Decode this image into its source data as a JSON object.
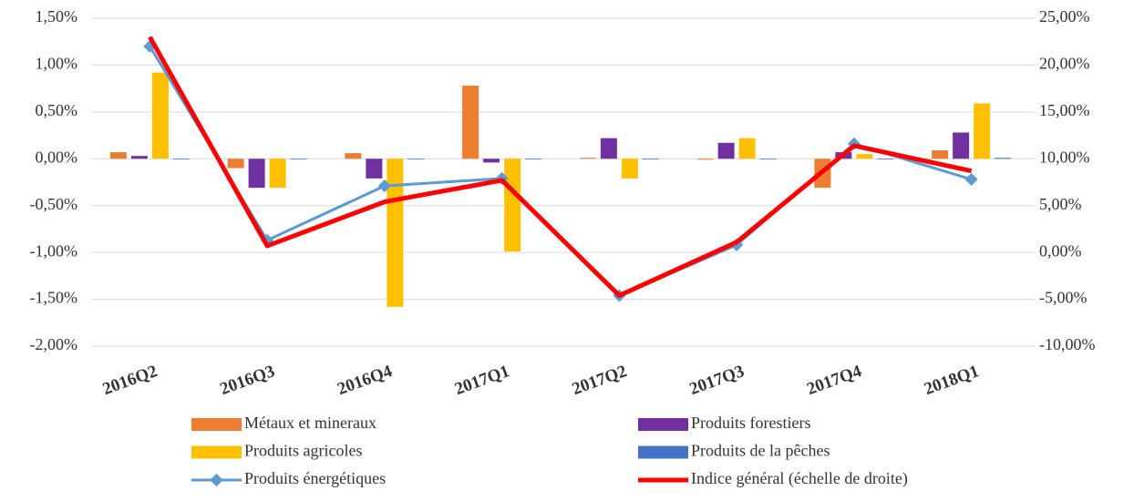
{
  "chart_data": {
    "type": "bar_line_dual",
    "categories": [
      "2016Q2",
      "2016Q3",
      "2016Q4",
      "2017Q1",
      "2017Q2",
      "2017Q3",
      "2017Q4",
      "2018Q1"
    ],
    "series": [
      {
        "name": "Métaux et mineraux",
        "color": "#ed7d31",
        "kind": "bar",
        "values": [
          0.07,
          -0.1,
          0.06,
          0.78,
          0.01,
          -0.01,
          -0.31,
          0.09
        ]
      },
      {
        "name": "Produits forestiers",
        "color": "#7030a0",
        "kind": "bar",
        "values": [
          0.03,
          -0.31,
          -0.21,
          -0.04,
          0.22,
          0.17,
          0.07,
          0.28
        ]
      },
      {
        "name": "Produits agricoles",
        "color": "#ffc000",
        "kind": "bar",
        "values": [
          0.92,
          -0.31,
          -1.58,
          -0.99,
          -0.21,
          0.22,
          0.05,
          0.59
        ]
      },
      {
        "name": "Produits de la pêches",
        "color": "#4472c4",
        "kind": "bar",
        "values": [
          0.0,
          0.0,
          0.0,
          0.0,
          0.0,
          0.0,
          0.0,
          0.01
        ]
      },
      {
        "name": "Produits énergétiques",
        "color": "#5b9bd5",
        "kind": "line",
        "values": [
          1.2,
          -0.87,
          -0.29,
          -0.21,
          -1.46,
          -0.92,
          0.16,
          -0.22
        ]
      },
      {
        "name": "Indice général (échelle de droite)",
        "color": "#ff0000",
        "kind": "line",
        "axis": "y2",
        "values": [
          23.0,
          0.7,
          5.4,
          7.7,
          -4.6,
          1.1,
          11.4,
          8.7
        ]
      }
    ],
    "ylim": [
      -2,
      1.5
    ],
    "yticks": [
      {
        "value": -2,
        "label": "-2,00%"
      },
      {
        "value": -1.5,
        "label": "-1,50%"
      },
      {
        "value": -1,
        "label": "-1,00%"
      },
      {
        "value": -0.5,
        "label": "-0,50%"
      },
      {
        "value": 0,
        "label": "0,00%"
      },
      {
        "value": 0.5,
        "label": "0,50%"
      },
      {
        "value": 1,
        "label": "1,00%"
      },
      {
        "value": 1.5,
        "label": "1,50%"
      }
    ],
    "y2lim": [
      -10,
      25
    ],
    "y2ticks": [
      {
        "value": -10,
        "label": "-10,00%"
      },
      {
        "value": -5,
        "label": "-5,00%"
      },
      {
        "value": 0,
        "label": "0,00%"
      },
      {
        "value": 5,
        "label": "5,00%"
      },
      {
        "value": 10,
        "label": "10,00%"
      },
      {
        "value": 15,
        "label": "15,00%"
      },
      {
        "value": 20,
        "label": "20,00%"
      },
      {
        "value": 25,
        "label": "25,00%"
      }
    ],
    "grid": true
  }
}
